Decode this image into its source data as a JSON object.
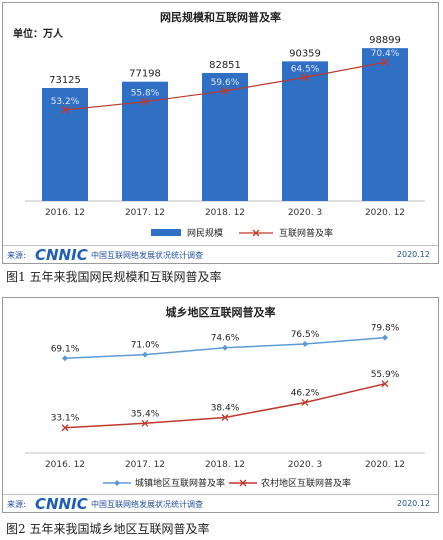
{
  "figure1": {
    "title": "网民规模和互联网普及率",
    "unit": "单位：万人",
    "source_label": "来源:",
    "source_logo": "CNNIC",
    "source_text": "中国互联网络发展状况统计调查",
    "source_date": "2020.12",
    "caption": "图1  五年来我国网民规模和互联网普及率"
  },
  "figure2": {
    "title": "城乡地区互联网普及率",
    "source_label": "来源:",
    "source_logo": "CNNIC",
    "source_text": "中国互联网络发展状况统计调查",
    "source_date": "2020.12",
    "caption": "图2  五年来我国城乡地区互联网普及率"
  },
  "chart_data": [
    {
      "type": "bar",
      "title": "网民规模和互联网普及率",
      "categories": [
        "2016. 12",
        "2017. 12",
        "2018. 12",
        "2020. 3",
        "2020. 12"
      ],
      "series": [
        {
          "name": "网民规模",
          "type": "bar",
          "values": [
            73125,
            77198,
            82851,
            90359,
            98899
          ],
          "labels": [
            "73125",
            "77198",
            "82851",
            "90359",
            "98899"
          ]
        },
        {
          "name": "互联网普及率",
          "type": "line",
          "values": [
            53.2,
            55.8,
            59.6,
            64.5,
            70.4
          ],
          "labels": [
            "53.2%",
            "55.8%",
            "59.6%",
            "64.5%",
            "70.4%"
          ]
        }
      ],
      "ylim": [
        0,
        110000
      ],
      "grid": false,
      "legend": "bottom",
      "colors": {
        "bar": "#2f6fc4",
        "line": "#c0392b"
      }
    },
    {
      "type": "line",
      "title": "城乡地区互联网普及率",
      "categories": [
        "2016. 12",
        "2017. 12",
        "2018. 12",
        "2020. 3",
        "2020. 12"
      ],
      "series": [
        {
          "name": "城镇地区互联网普及率",
          "values": [
            69.1,
            71.0,
            74.6,
            76.5,
            79.8
          ],
          "labels": [
            "69.1%",
            "71.0%",
            "74.6%",
            "76.5%",
            "79.8%"
          ]
        },
        {
          "name": "农村地区互联网普及率",
          "values": [
            33.1,
            35.4,
            38.4,
            46.2,
            55.9
          ],
          "labels": [
            "33.1%",
            "35.4%",
            "38.4%",
            "46.2%",
            "55.9%"
          ]
        }
      ],
      "ylim": [
        20,
        90
      ],
      "grid": false,
      "legend": "bottom",
      "colors": {
        "urban": "#5b9bd5",
        "rural": "#c0392b"
      }
    }
  ]
}
